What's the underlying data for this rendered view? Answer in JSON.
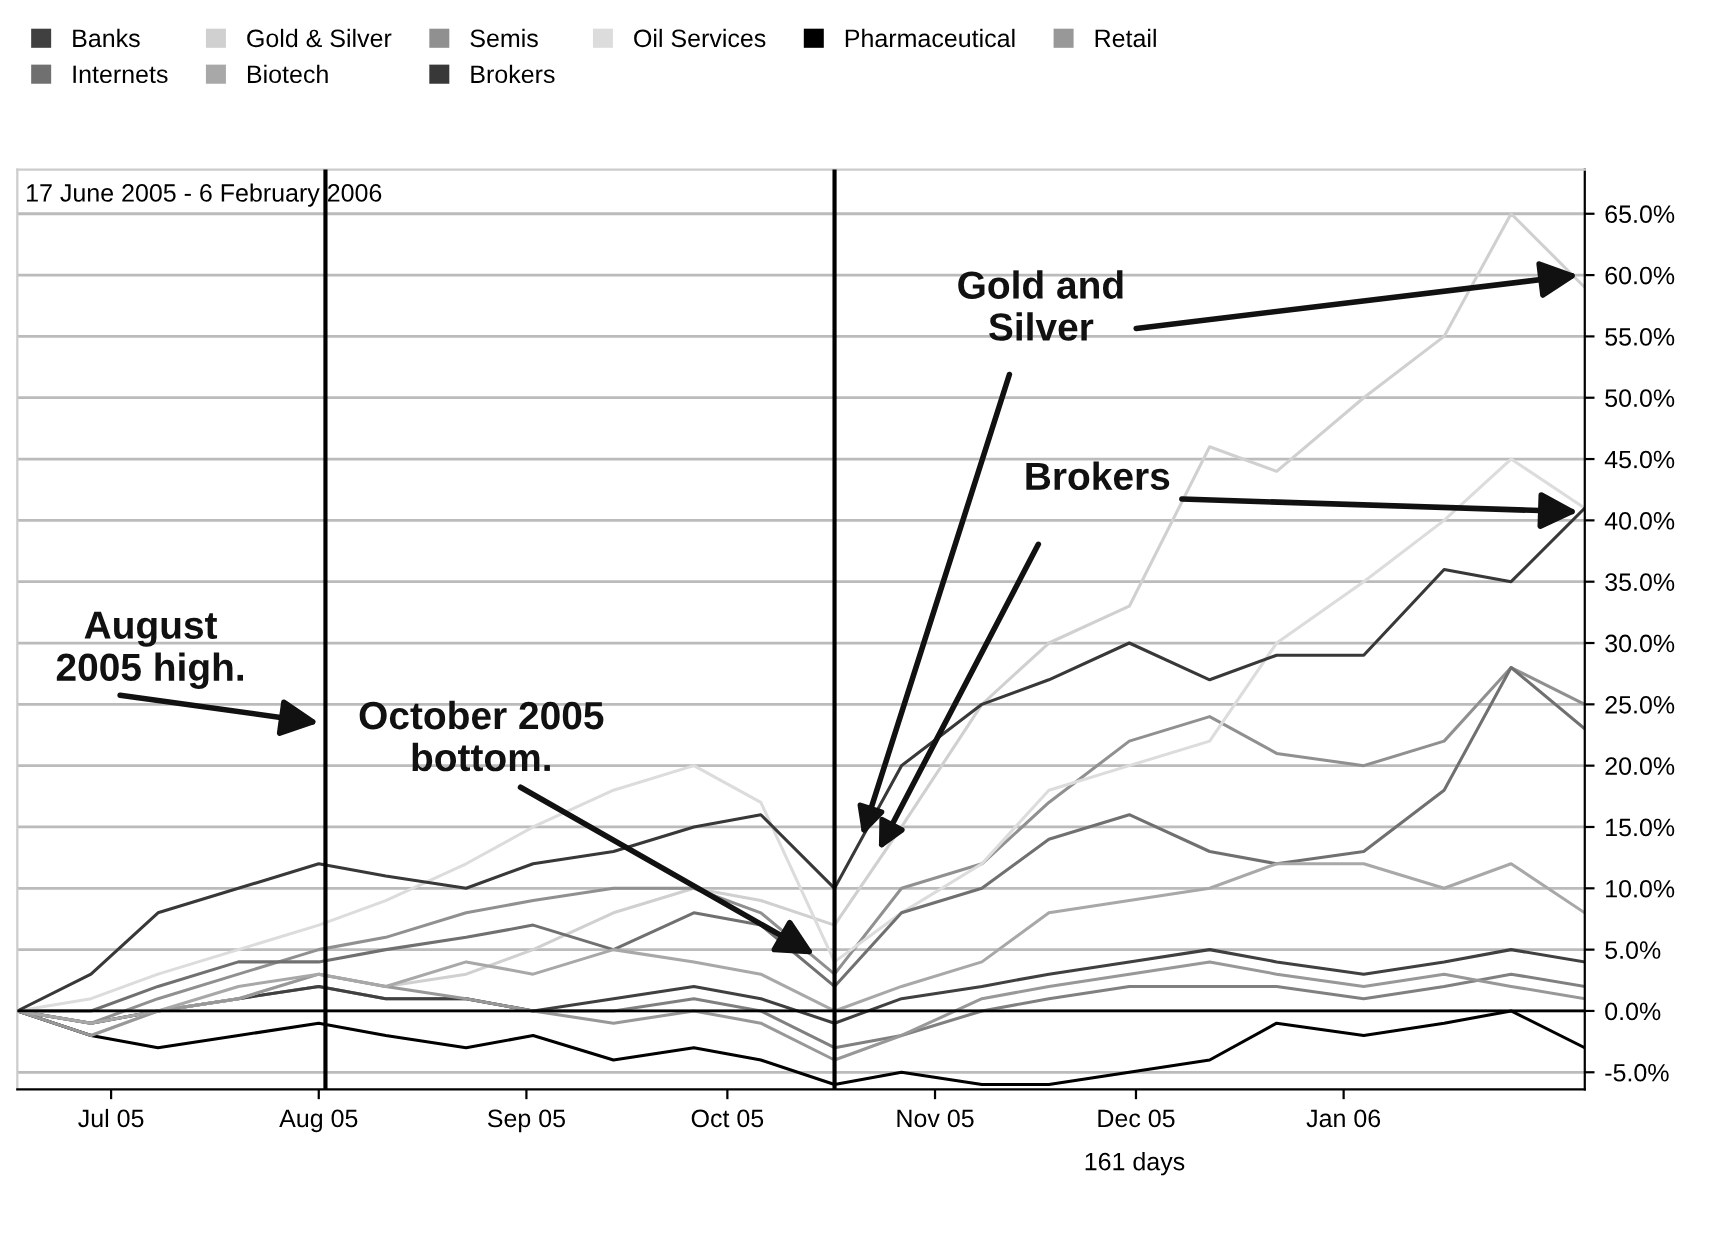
{
  "chart_data": {
    "type": "line",
    "title": "17 June 2005 - 6 February 2006",
    "x": [
      "2005-06-17",
      "2005-06-28",
      "2005-07-08",
      "2005-07-20",
      "2005-08-01",
      "2005-08-11",
      "2005-08-23",
      "2005-09-02",
      "2005-09-14",
      "2005-09-26",
      "2005-10-06",
      "2005-10-17",
      "2005-10-27",
      "2005-11-08",
      "2005-11-18",
      "2005-11-30",
      "2005-12-12",
      "2005-12-22",
      "2006-01-04",
      "2006-01-16",
      "2006-01-26",
      "2006-02-06"
    ],
    "series": [
      {
        "color": "#808080",
        "values": [
          0,
          -1,
          0,
          1,
          2,
          1,
          1,
          0,
          0,
          1,
          0,
          -3,
          -2,
          0,
          1,
          2,
          2,
          2,
          1,
          2,
          3,
          2
        ]
      },
      {
        "name": "Banks",
        "color": "#404040",
        "values": [
          0,
          -1,
          0,
          1,
          2,
          1,
          1,
          0,
          1,
          2,
          1,
          -1,
          1,
          2,
          3,
          4,
          5,
          4,
          3,
          4,
          5,
          4
        ]
      },
      {
        "name": "Gold & Silver",
        "color": "#d0d0d0",
        "values": [
          0,
          -2,
          0,
          1,
          3,
          2,
          3,
          5,
          8,
          10,
          9,
          7,
          15,
          25,
          30,
          33,
          46,
          44,
          50,
          55,
          65,
          59
        ]
      },
      {
        "name": "Semis",
        "color": "#909090",
        "values": [
          0,
          -1,
          1,
          3,
          5,
          6,
          8,
          9,
          10,
          10,
          8,
          3,
          10,
          12,
          17,
          22,
          24,
          21,
          20,
          22,
          28,
          25
        ]
      },
      {
        "name": "Oil Services",
        "color": "#dcdcdc",
        "values": [
          0,
          1,
          3,
          5,
          7,
          9,
          12,
          15,
          18,
          20,
          17,
          4,
          8,
          12,
          18,
          20,
          22,
          30,
          35,
          40,
          45,
          41
        ]
      },
      {
        "name": "Pharmaceutical",
        "color": "#000000",
        "values": [
          0,
          -2,
          -3,
          -2,
          -1,
          -2,
          -3,
          -2,
          -4,
          -3,
          -4,
          -6,
          -5,
          -6,
          -6,
          -5,
          -4,
          -1,
          -2,
          -1,
          0,
          -3
        ]
      },
      {
        "name": "Retail",
        "color": "#989898",
        "values": [
          0,
          -2,
          0,
          1,
          3,
          2,
          1,
          0,
          -1,
          0,
          -1,
          -4,
          -2,
          1,
          2,
          3,
          4,
          3,
          2,
          3,
          2,
          1
        ]
      },
      {
        "name": "Internets",
        "color": "#707070",
        "values": [
          0,
          0,
          2,
          4,
          4,
          5,
          6,
          7,
          5,
          8,
          7,
          2,
          8,
          10,
          14,
          16,
          13,
          12,
          13,
          18,
          28,
          23
        ]
      },
      {
        "name": "Biotech",
        "color": "#a8a8a8",
        "values": [
          0,
          -1,
          0,
          2,
          3,
          2,
          4,
          3,
          5,
          4,
          3,
          0,
          2,
          4,
          8,
          9,
          10,
          12,
          12,
          10,
          12,
          8
        ]
      },
      {
        "name": "Brokers",
        "color": "#383838",
        "values": [
          0,
          3,
          8,
          10,
          12,
          11,
          10,
          12,
          13,
          15,
          16,
          10,
          20,
          25,
          27,
          30,
          27,
          29,
          29,
          36,
          35,
          41
        ]
      }
    ],
    "xlim": [
      "2005-06-17",
      "2006-02-06"
    ],
    "xticks": [
      {
        "value": "2005-07-01",
        "label": "Jul 05"
      },
      {
        "value": "2005-08-01",
        "label": "Aug 05"
      },
      {
        "value": "2005-09-01",
        "label": "Sep 05"
      },
      {
        "value": "2005-10-01",
        "label": "Oct 05"
      },
      {
        "value": "2005-11-01",
        "label": "Nov 05"
      },
      {
        "value": "2005-12-01",
        "label": "Dec 05"
      },
      {
        "value": "2006-01-01",
        "label": "Jan 06"
      }
    ],
    "ylim": [
      -6.4,
      68.6
    ],
    "yticks": [
      {
        "value": -5,
        "label": "-5.0%"
      },
      {
        "value": 0,
        "label": "0.0%"
      },
      {
        "value": 5,
        "label": "5.0%"
      },
      {
        "value": 10,
        "label": "10.0%"
      },
      {
        "value": 15,
        "label": "15.0%"
      },
      {
        "value": 20,
        "label": "20.0%"
      },
      {
        "value": 25,
        "label": "25.0%"
      },
      {
        "value": 30,
        "label": "30.0%"
      },
      {
        "value": 35,
        "label": "35.0%"
      },
      {
        "value": 40,
        "label": "40.0%"
      },
      {
        "value": 45,
        "label": "45.0%"
      },
      {
        "value": 50,
        "label": "50.0%"
      },
      {
        "value": 55,
        "label": "55.0%"
      },
      {
        "value": 60,
        "label": "60.0%"
      },
      {
        "value": 65,
        "label": "65.0%"
      }
    ],
    "ref_lines": [
      {
        "axis": "x",
        "value": "2005-08-02",
        "color": "#000000"
      },
      {
        "axis": "x",
        "value": "2005-10-17",
        "color": "#000000"
      },
      {
        "axis": "y",
        "value": 0,
        "color": "#000000"
      }
    ],
    "annotations": [
      {
        "text": "August\n2005 high.",
        "x": "2005-08-01",
        "y": 23.5
      },
      {
        "text": "October 2005\nbottom.",
        "x": "2005-10-14",
        "y": 4.6
      },
      {
        "text": "Gold and\nSilver",
        "x": "2006-02-05",
        "y": 60
      },
      {
        "text": "Brokers",
        "x": "2006-02-05",
        "y": 40.7
      },
      "161 days"
    ],
    "grid": "y",
    "legend": "top",
    "marker": "none",
    "line_style": "solid"
  }
}
